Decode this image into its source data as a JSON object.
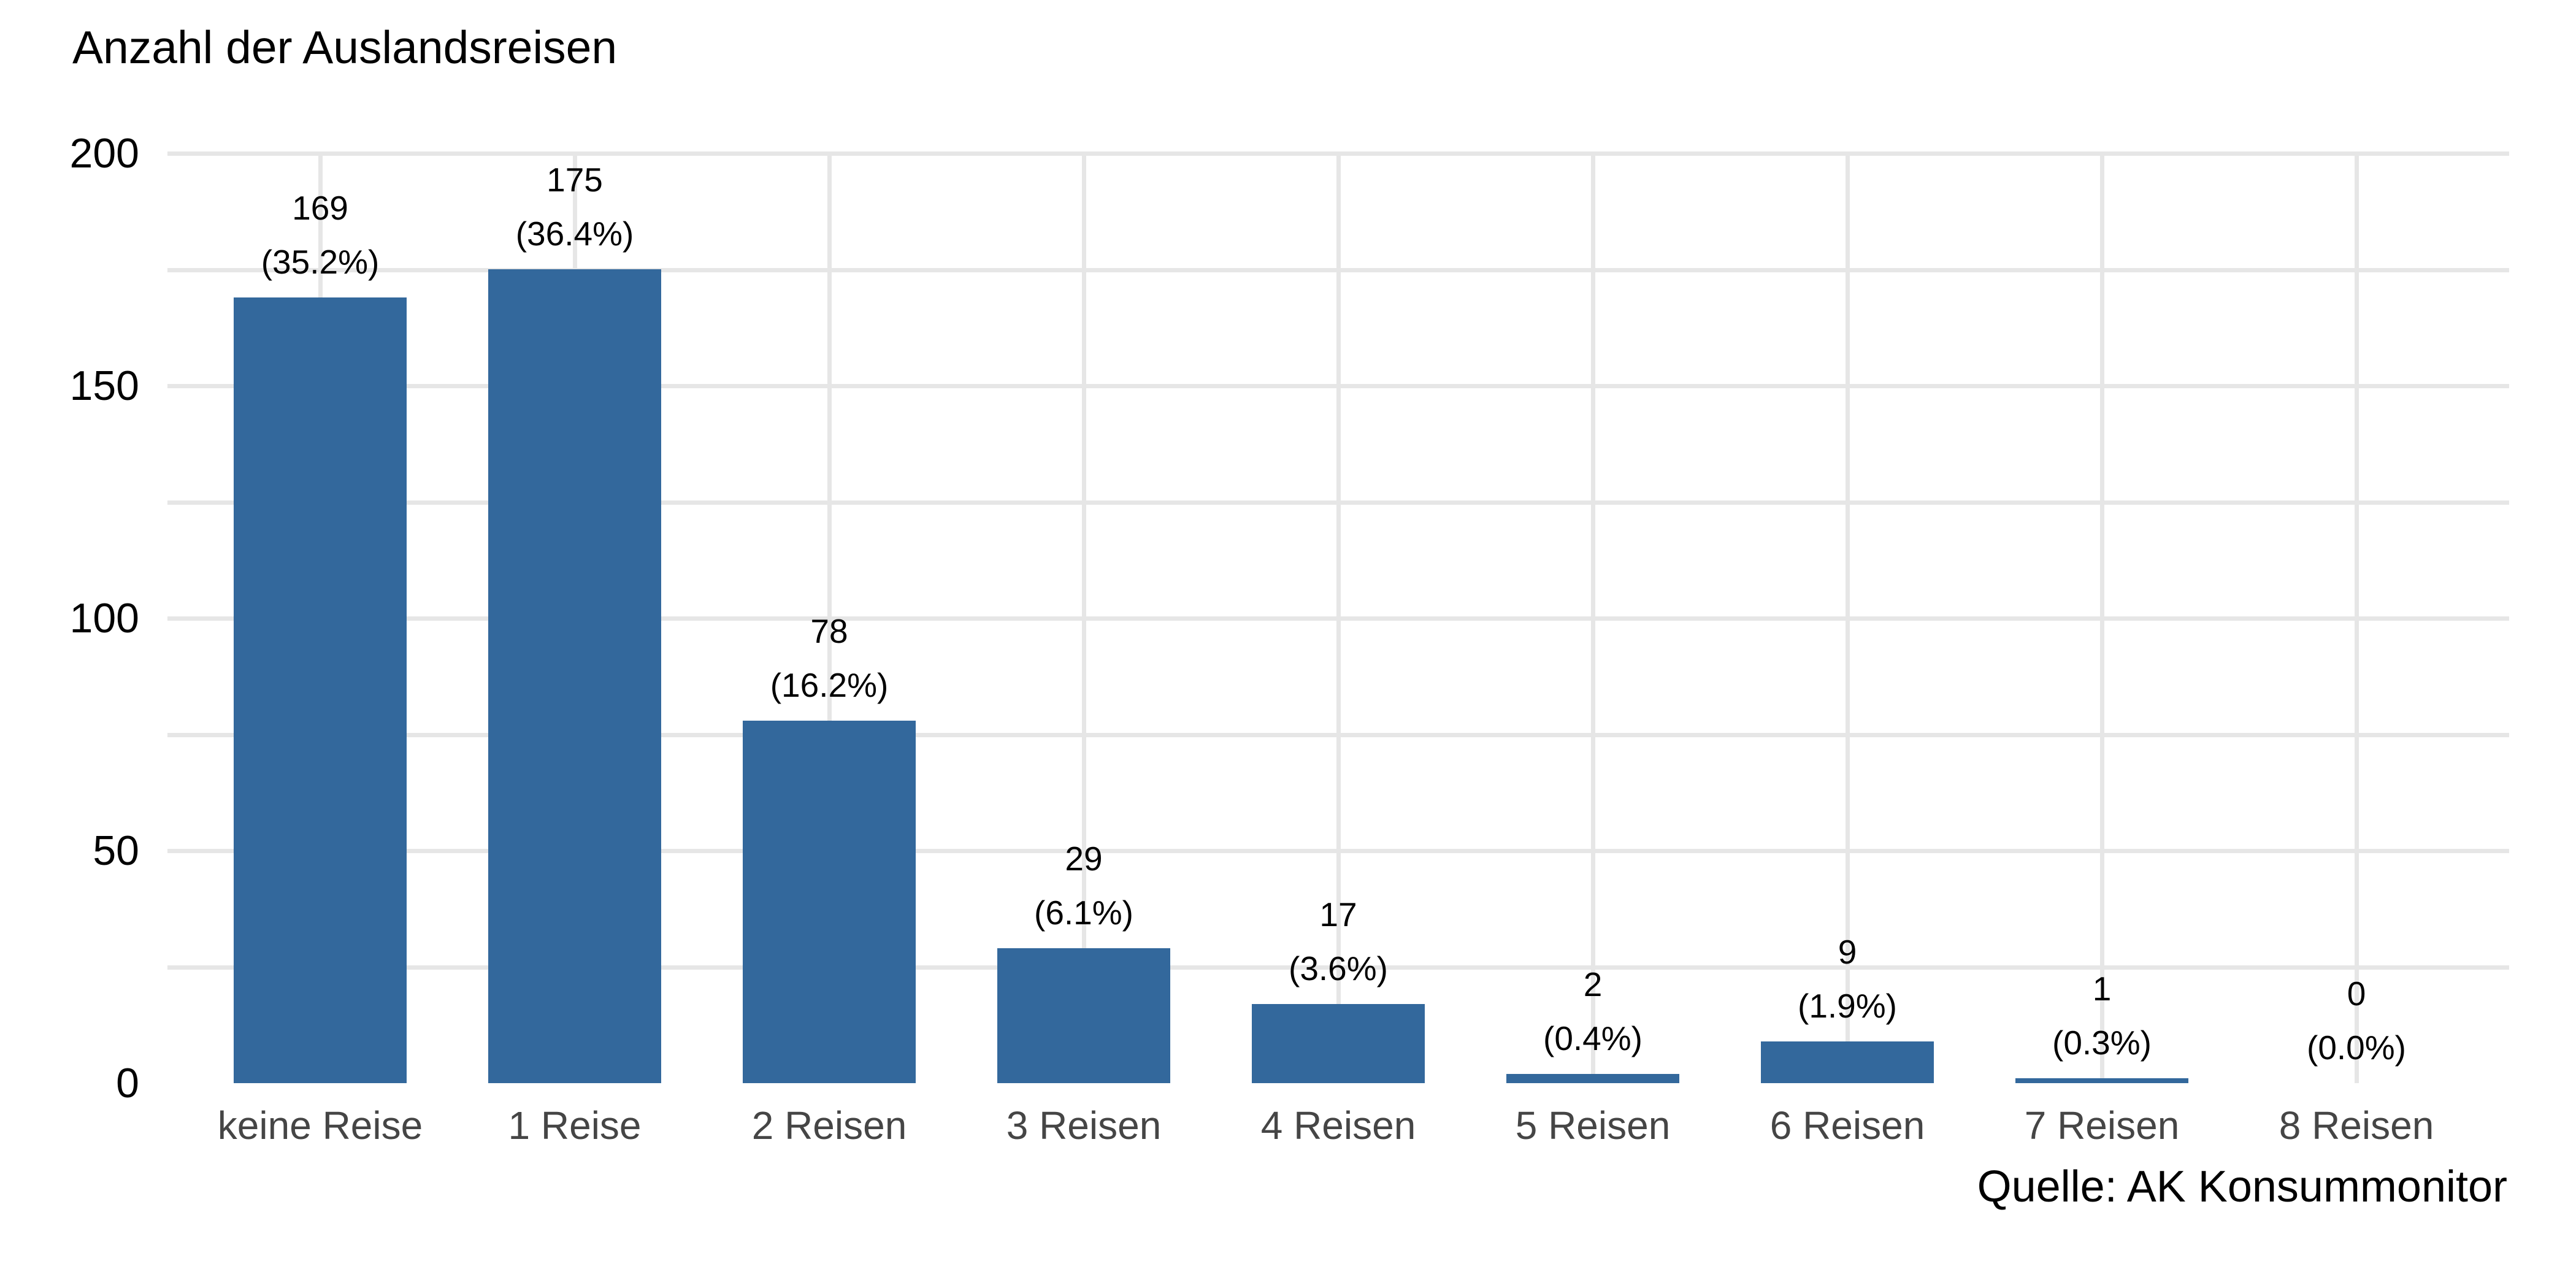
{
  "title": "Anzahl der Auslandsreisen",
  "source_caption": "Quelle: AK Konsummonitor",
  "colors": {
    "bar": "#33689c",
    "grid": "#e6e6e6",
    "x_axis_text": "#454545",
    "y_axis_text": "#000000",
    "text": "#000000",
    "background": "#ffffff"
  },
  "y_axis": {
    "tick_labels": [
      "0",
      "50",
      "100",
      "150",
      "200"
    ],
    "tick_values": [
      0,
      50,
      100,
      150,
      200
    ],
    "minor_step": 25,
    "max": 200
  },
  "chart_data": {
    "type": "bar",
    "title": "Anzahl der Auslandsreisen",
    "categories": [
      "keine Reise",
      "1 Reise",
      "2 Reisen",
      "3 Reisen",
      "4 Reisen",
      "5 Reisen",
      "6 Reisen",
      "7 Reisen",
      "8 Reisen"
    ],
    "values": [
      169,
      175,
      78,
      29,
      17,
      2,
      9,
      1,
      0
    ],
    "percents": [
      35.2,
      36.4,
      16.2,
      6.1,
      3.6,
      0.4,
      1.9,
      0.3,
      0.0
    ],
    "percent_labels": [
      "(35.2%)",
      "(36.4%)",
      "(16.2%)",
      "(6.1%)",
      "(3.6%)",
      "(0.4%)",
      "(1.9%)",
      "(0.3%)",
      "(0.0%)"
    ],
    "xlabel": "",
    "ylabel": "",
    "ylim": [
      0,
      200
    ],
    "yticks": [
      0,
      50,
      100,
      150,
      200
    ],
    "grid": "on",
    "legend": "none",
    "bar_color": "#33689c",
    "source": "Quelle: AK Konsummonitor"
  }
}
